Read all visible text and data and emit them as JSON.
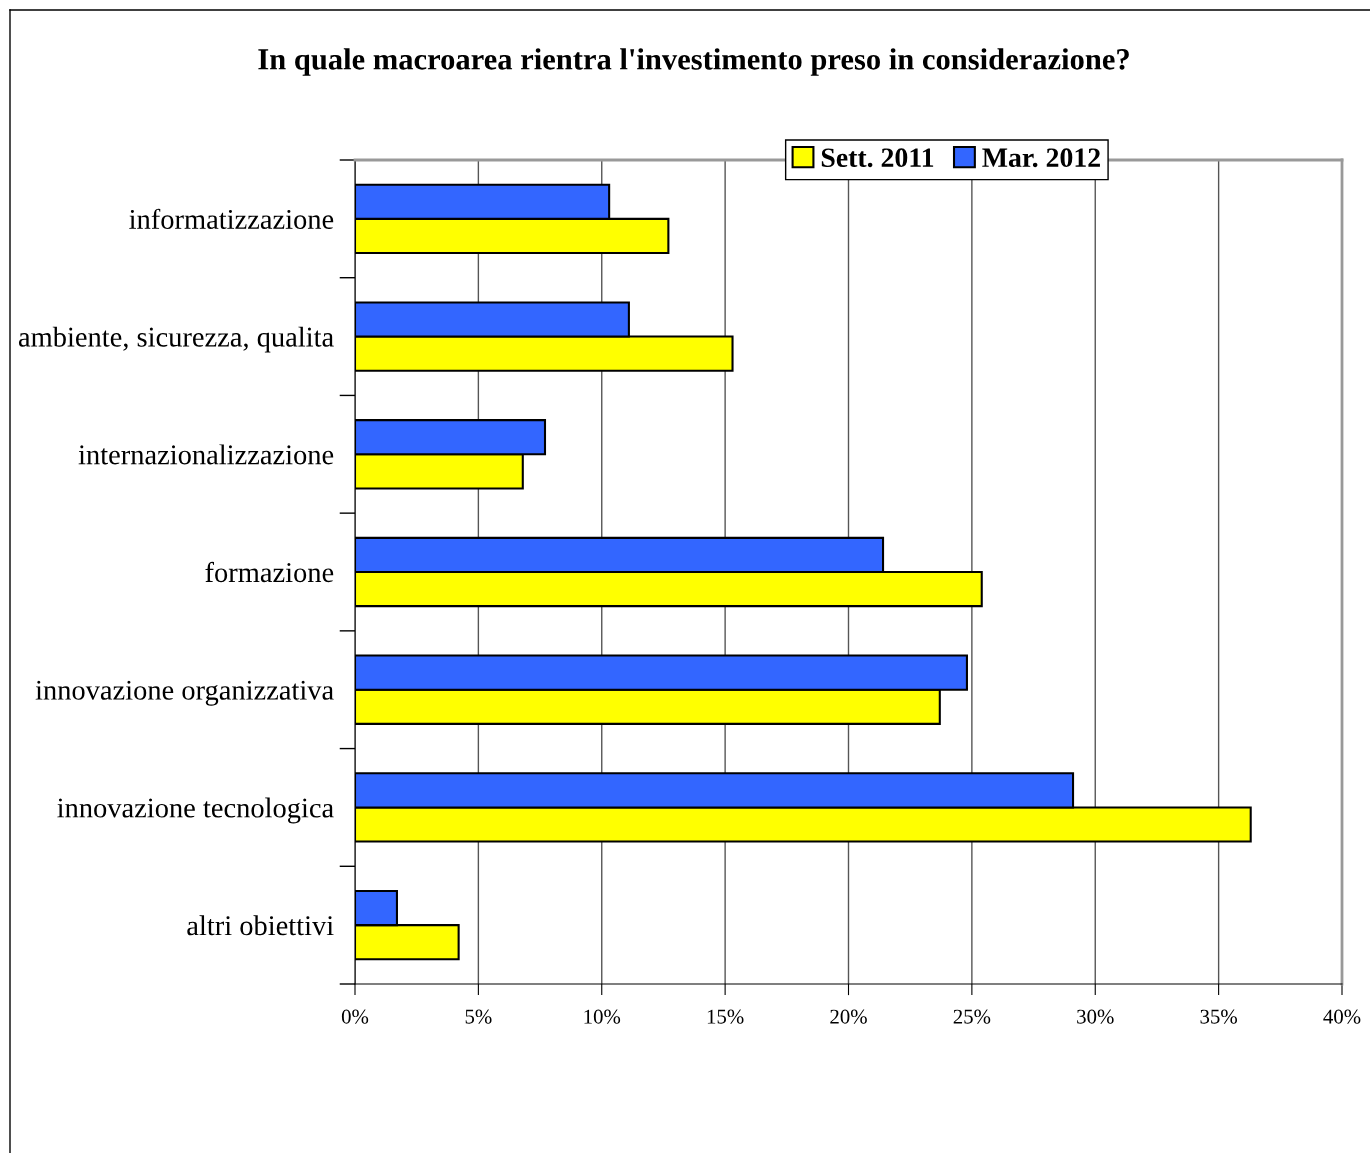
{
  "chart_data": {
    "type": "bar",
    "orientation": "horizontal",
    "title": "In quale macroarea rientra l'investimento preso in considerazione?",
    "categories": [
      "informatizzazione",
      "ambiente, sicurezza, qualita",
      "internazionalizzazione",
      "formazione",
      "innovazione organizzativa",
      "innovazione tecnologica",
      "altri obiettivi"
    ],
    "series": [
      {
        "name": "Sett. 2011",
        "color": "#ffff00",
        "values": [
          12.7,
          15.3,
          6.8,
          25.4,
          23.7,
          36.3,
          4.2
        ]
      },
      {
        "name": "Mar. 2012",
        "color": "#3366ff",
        "values": [
          10.3,
          11.1,
          7.7,
          21.4,
          24.8,
          29.1,
          1.7
        ]
      }
    ],
    "xlim": [
      0,
      40
    ],
    "xticks": [
      {
        "value": 0,
        "label": "0%"
      },
      {
        "value": 5,
        "label": "5%"
      },
      {
        "value": 10,
        "label": "10%"
      },
      {
        "value": 15,
        "label": "15%"
      },
      {
        "value": 20,
        "label": "20%"
      },
      {
        "value": 25,
        "label": "25%"
      },
      {
        "value": 30,
        "label": "30%"
      },
      {
        "value": 35,
        "label": "35%"
      },
      {
        "value": 40,
        "label": "40%"
      }
    ],
    "grid": "x",
    "legend": "top right"
  }
}
